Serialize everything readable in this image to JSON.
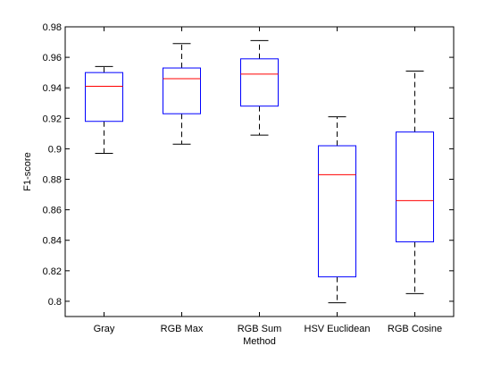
{
  "chart_data": {
    "type": "boxplot",
    "title": "",
    "xlabel": "Method",
    "ylabel": "F1-score",
    "ylim": [
      0.79,
      0.98
    ],
    "yticks": [
      0.8,
      0.82,
      0.84,
      0.86,
      0.88,
      0.9,
      0.92,
      0.94,
      0.96,
      0.98
    ],
    "ytick_labels": [
      "0.8",
      "0.82",
      "0.84",
      "0.86",
      "0.88",
      "0.9",
      "0.92",
      "0.94",
      "0.96",
      "0.98"
    ],
    "categories": [
      "Gray",
      "RGB Max",
      "RGB Sum",
      "HSV Euclidean",
      "RGB Cosine"
    ],
    "boxes": [
      {
        "min": 0.897,
        "q1": 0.918,
        "median": 0.941,
        "q3": 0.95,
        "max": 0.954
      },
      {
        "min": 0.903,
        "q1": 0.923,
        "median": 0.946,
        "q3": 0.953,
        "max": 0.969
      },
      {
        "min": 0.909,
        "q1": 0.928,
        "median": 0.949,
        "q3": 0.959,
        "max": 0.971
      },
      {
        "min": 0.799,
        "q1": 0.816,
        "median": 0.883,
        "q3": 0.902,
        "max": 0.921
      },
      {
        "min": 0.805,
        "q1": 0.839,
        "median": 0.866,
        "q3": 0.911,
        "max": 0.951
      }
    ],
    "grid": false,
    "colors": {
      "box": "#0000ff",
      "median": "#ff0000",
      "whisker": "#000000"
    }
  }
}
